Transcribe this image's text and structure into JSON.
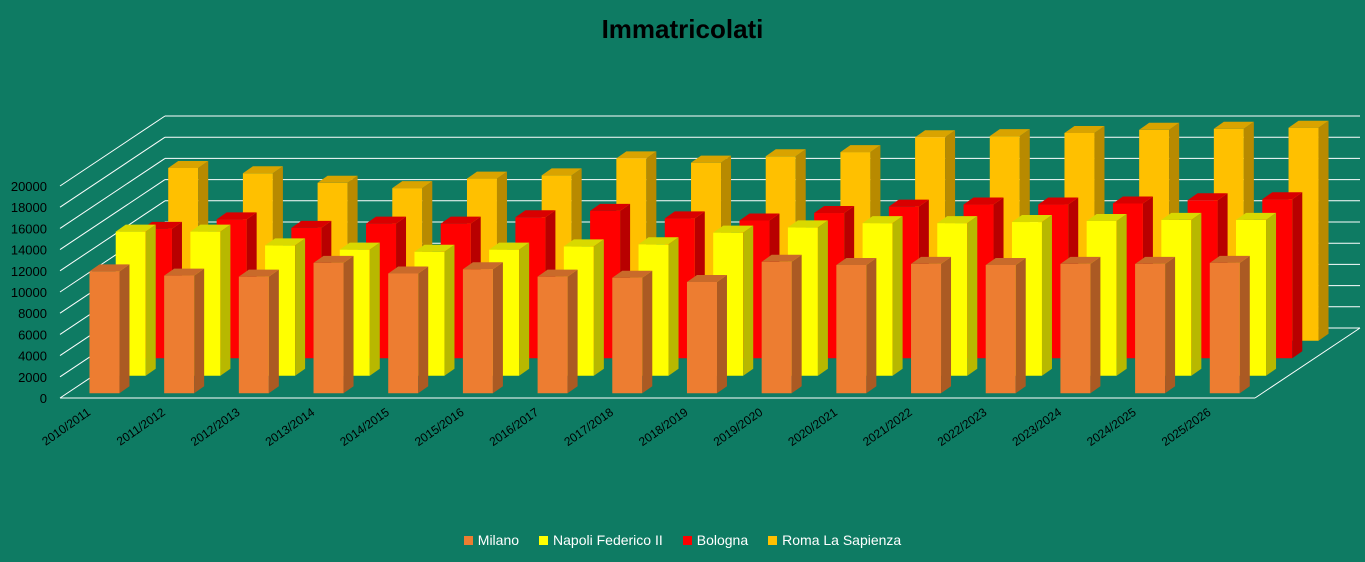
{
  "chart_data": {
    "type": "bar",
    "title": "Immatricolati",
    "categories": [
      "2010/2011",
      "2011/2012",
      "2012/2013",
      "2013/2014",
      "2014/2015",
      "2015/2016",
      "2016/2017",
      "2017/2018",
      "2018/2019",
      "2019/2020",
      "2020/2021",
      "2021/2022",
      "2022/2023",
      "2023/2024",
      "2024/2025",
      "2025/2026"
    ],
    "yticks": [
      0,
      2000,
      4000,
      6000,
      8000,
      10000,
      12000,
      14000,
      16000,
      18000,
      20000
    ],
    "ylim": [
      0,
      20000
    ],
    "grid": true,
    "legend_position": "bottom",
    "series": [
      {
        "name": "Milano",
        "color": "#ed7d31",
        "values": [
          11500,
          11100,
          11000,
          12300,
          11300,
          11700,
          11000,
          10900,
          10500,
          12400,
          12100,
          12200,
          12100,
          12200,
          12200,
          12300
        ]
      },
      {
        "name": "Napoli Federico II",
        "color": "#ffff00",
        "values": [
          13600,
          13600,
          12300,
          11900,
          11700,
          11900,
          12200,
          12400,
          13500,
          14000,
          14400,
          14400,
          14500,
          14600,
          14700,
          14700
        ]
      },
      {
        "name": "Bologna",
        "color": "#ff0000",
        "values": [
          12200,
          13100,
          12300,
          12700,
          12700,
          13300,
          13900,
          13200,
          13000,
          13700,
          14300,
          14500,
          14500,
          14600,
          14900,
          15000
        ]
      },
      {
        "name": "Roma La Sapienza",
        "color": "#ffc000",
        "values": [
          16300,
          15800,
          14900,
          14400,
          15300,
          15600,
          17200,
          16800,
          17400,
          17800,
          19200,
          19300,
          19600,
          19900,
          20000,
          20100
        ]
      }
    ]
  }
}
